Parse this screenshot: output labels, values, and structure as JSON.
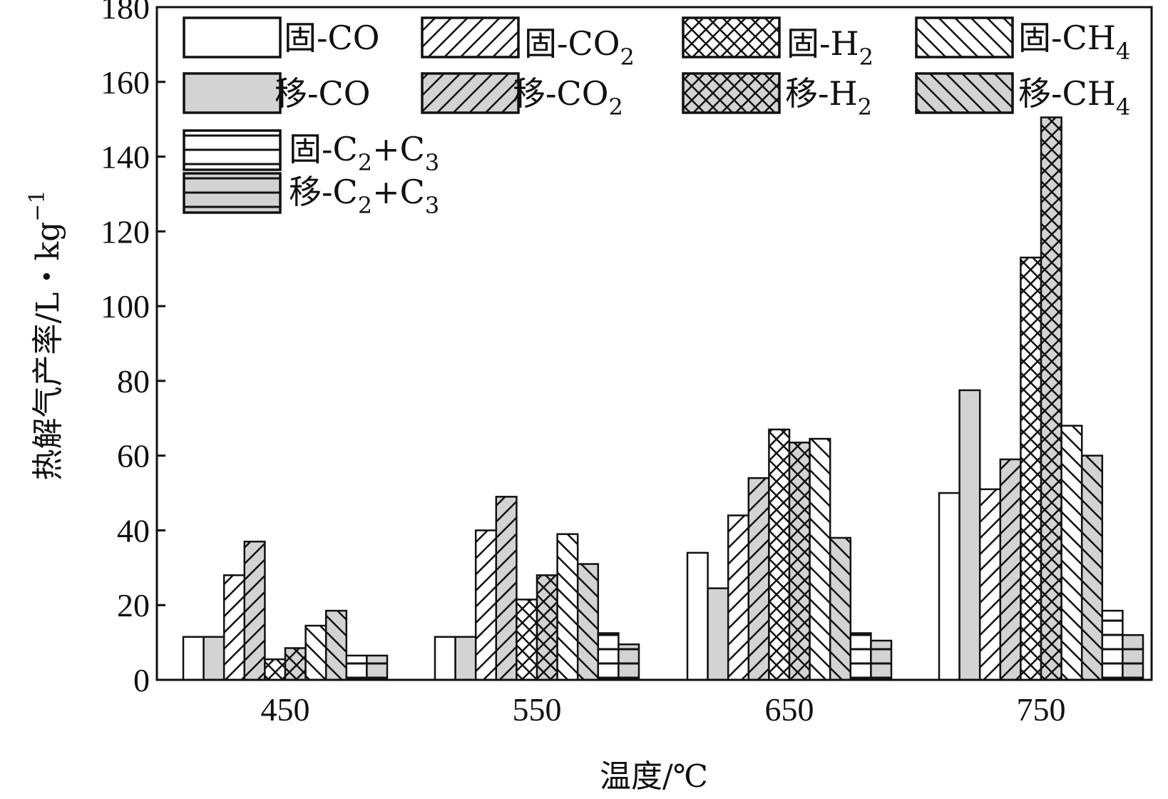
{
  "chart_data": {
    "type": "bar",
    "title": "",
    "xlabel": "温度/℃",
    "ylabel": "热解气产率/L・kg",
    "ylabel_sup": "−1",
    "categories": [
      "450",
      "550",
      "650",
      "750"
    ],
    "ylim": [
      0,
      180
    ],
    "yticks": [
      "0",
      "20",
      "40",
      "60",
      "80",
      "100",
      "120",
      "140",
      "160",
      "180"
    ],
    "legend_position": "top-left",
    "series": [
      {
        "name": "固-CO",
        "label": "固-CO",
        "sub": "",
        "pattern": "plain",
        "fill": "#ffffff",
        "values": [
          11.5,
          11.5,
          34,
          50
        ]
      },
      {
        "name": "移-CO",
        "label": "移-CO",
        "sub": "",
        "pattern": "plain",
        "fill": "#d3d3d3",
        "values": [
          11.5,
          11.5,
          24.5,
          77.5
        ]
      },
      {
        "name": "固-CO2",
        "label": "固-CO",
        "sub": "2",
        "pattern": "diag-right",
        "fill": "#ffffff",
        "values": [
          28,
          40,
          44,
          51
        ]
      },
      {
        "name": "移-CO2",
        "label": "移-CO",
        "sub": "2",
        "pattern": "diag-right",
        "fill": "#d3d3d3",
        "values": [
          37,
          49,
          54,
          59
        ]
      },
      {
        "name": "固-H2",
        "label": "固-H",
        "sub": "2",
        "pattern": "cross",
        "fill": "#ffffff",
        "values": [
          5.5,
          21.5,
          67,
          113
        ]
      },
      {
        "name": "移-H2",
        "label": "移-H",
        "sub": "2",
        "pattern": "cross",
        "fill": "#d3d3d3",
        "values": [
          8.5,
          28,
          63.5,
          150.5
        ]
      },
      {
        "name": "固-CH4",
        "label": "固-CH",
        "sub": "4",
        "pattern": "diag-left",
        "fill": "#ffffff",
        "values": [
          14.5,
          39,
          64.5,
          68
        ]
      },
      {
        "name": "移-CH4",
        "label": "移-CH",
        "sub": "4",
        "pattern": "diag-left",
        "fill": "#d3d3d3",
        "values": [
          18.5,
          31,
          38,
          60
        ]
      },
      {
        "name": "固-C2+C3",
        "label": "固-C",
        "sub": "2",
        "label2": "+C",
        "sub2": "3",
        "pattern": "horizontal",
        "fill": "#ffffff",
        "values": [
          6.5,
          12.5,
          12.5,
          18.5
        ]
      },
      {
        "name": "移-C2+C3",
        "label": "移-C",
        "sub": "2",
        "label2": "+C",
        "sub2": "3",
        "pattern": "horizontal",
        "fill": "#d3d3d3",
        "values": [
          6.5,
          9.5,
          10.5,
          12
        ]
      }
    ]
  }
}
